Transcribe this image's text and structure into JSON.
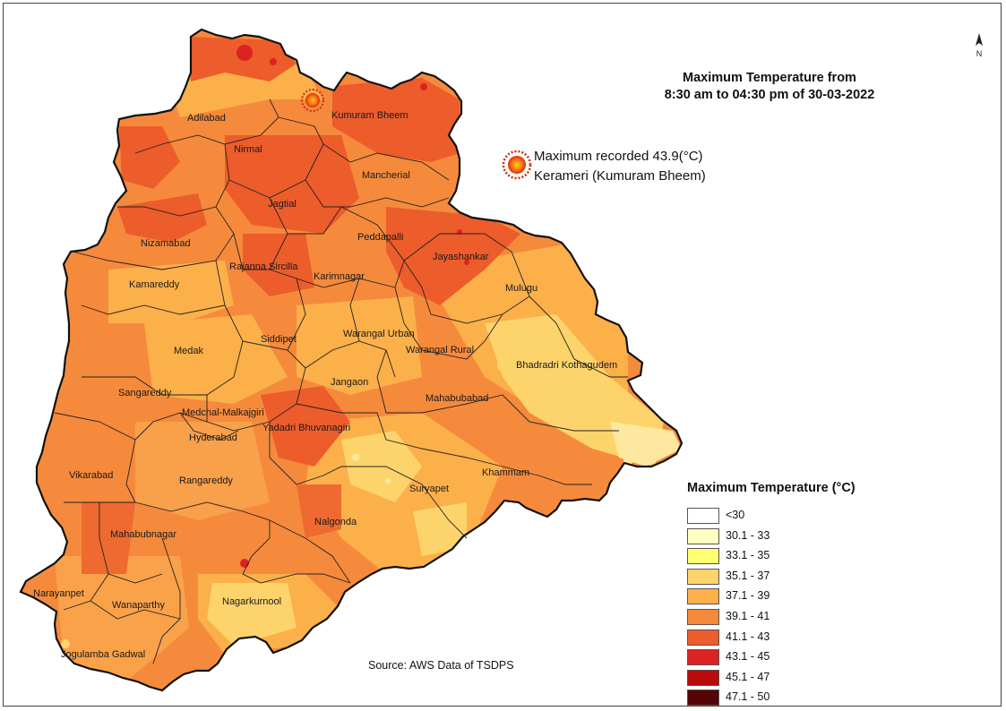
{
  "map": {
    "title_line1": "Maximum Temperature from",
    "title_line2": "8:30 am to 04:30 pm of  30-03-2022",
    "north_label": "N",
    "max_recorded_line1": "Maximum recorded 43.9(°C)",
    "max_recorded_line2": "Kerameri (Kumuram Bheem)",
    "source": "Source: AWS Data of TSDPS",
    "legend_title": "Maximum Temperature (°C)",
    "legend": [
      {
        "label": "<30",
        "color": "#ffffff"
      },
      {
        "label": "30.1 - 33",
        "color": "#ffffc4"
      },
      {
        "label": "33.1 - 35",
        "color": "#ffff70"
      },
      {
        "label": "35.1 - 37",
        "color": "#fdd46c"
      },
      {
        "label": "37.1 - 39",
        "color": "#fbb04a"
      },
      {
        "label": "39.1 - 41",
        "color": "#f58a3c"
      },
      {
        "label": "41.1 - 43",
        "color": "#ed5c2b"
      },
      {
        "label": "43.1 - 45",
        "color": "#dd2222"
      },
      {
        "label": "45.1 - 47",
        "color": "#bb0a0a"
      },
      {
        "label": "47.1 - 50",
        "color": "#550505"
      }
    ],
    "districts": [
      "Adilabad",
      "Kumuram Bheem",
      "Nirmal",
      "Mancherial",
      "Jagtial",
      "Nizamabad",
      "Peddapalli",
      "Jayashankar",
      "Rajanna Sircilla",
      "Karimnagar",
      "Kamareddy",
      "Mulugu",
      "Medak",
      "Siddipet",
      "Warangal Urban",
      "Warangal Rural",
      "Bhadradri Kothagudem",
      "Jangaon",
      "Sangareddy",
      "Mahabubabad",
      "Medchal-Malkajgiri",
      "Yadadri Bhuvanagiri",
      "Hyderabad",
      "Vikarabad",
      "Khammam",
      "Rangareddy",
      "Suryapet",
      "Nalgonda",
      "Mahabubnagar",
      "Narayanpet",
      "Wanaparthy",
      "Nagarkurnool",
      "Jogulamba Gadwal"
    ]
  }
}
